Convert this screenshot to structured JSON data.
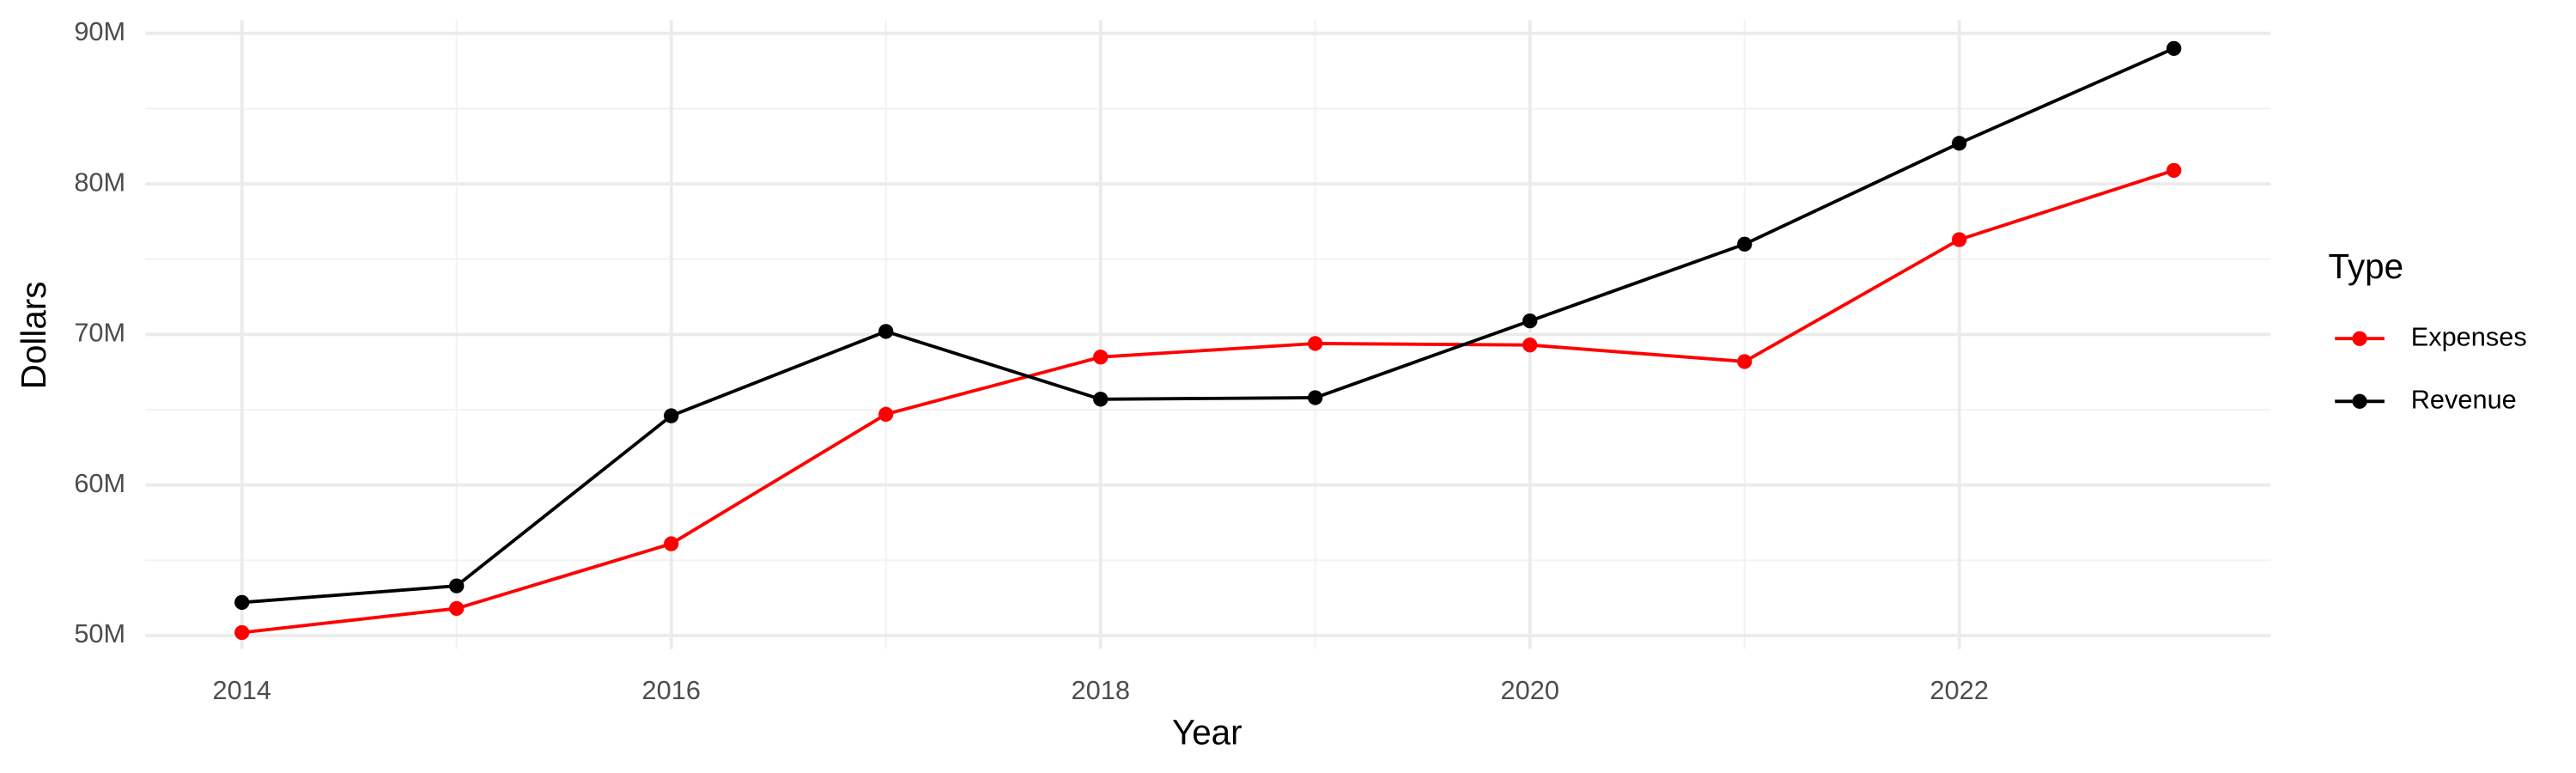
{
  "chart_data": {
    "type": "line",
    "x_label": "Year",
    "y_label": "Dollars",
    "legend_title": "Type",
    "legend_position": "right",
    "grid": true,
    "x": [
      2014,
      2015,
      2016,
      2017,
      2018,
      2019,
      2020,
      2021,
      2022,
      2023
    ],
    "xlim": [
      2013.55,
      2023.45
    ],
    "xticks": [
      2014,
      2016,
      2018,
      2020,
      2022
    ],
    "ylim": [
      49100000,
      90900000
    ],
    "yticks": [
      {
        "value": 50000000,
        "label": "50M"
      },
      {
        "value": 60000000,
        "label": "60M"
      },
      {
        "value": 70000000,
        "label": "70M"
      },
      {
        "value": 80000000,
        "label": "80M"
      },
      {
        "value": 90000000,
        "label": "90M"
      }
    ],
    "series": [
      {
        "name": "Expenses",
        "color": "#ff0000",
        "values": [
          50200000,
          51800000,
          56100000,
          64700000,
          68500000,
          69400000,
          69300000,
          68200000,
          76300000,
          80900000
        ]
      },
      {
        "name": "Revenue",
        "color": "#000000",
        "values": [
          52200000,
          53300000,
          64600000,
          70200000,
          65700000,
          65800000,
          70900000,
          76000000,
          82700000,
          89000000
        ]
      }
    ]
  }
}
